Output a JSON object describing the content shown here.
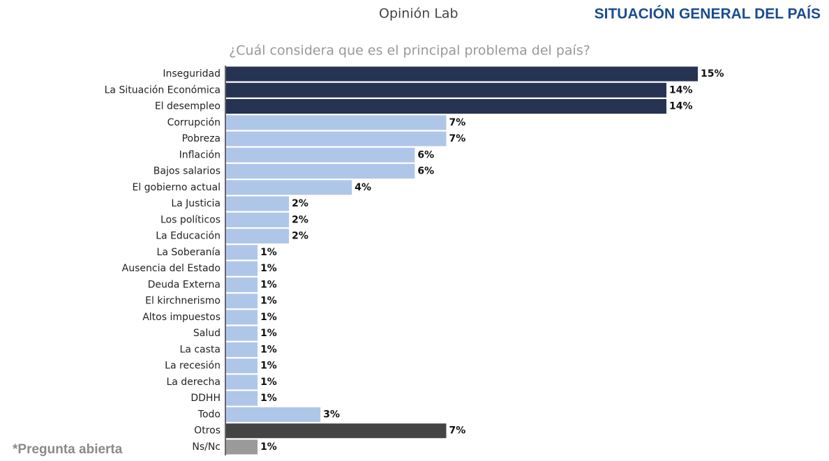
{
  "header": {
    "brand": "Opinión Lab",
    "section": "SITUACIÓN GENERAL DEL PAÍS"
  },
  "footnote": "*Pregunta abierta",
  "chart_data": {
    "type": "hbar",
    "title": "¿Cuál considera que es el principal problema del país?",
    "categories": [
      "Inseguridad",
      "La Situación Económica",
      "El desempleo",
      "Corrupción",
      "Pobreza",
      "Inflación",
      "Bajos salarios",
      "El gobierno actual",
      "La Justicia",
      "Los políticos",
      "La Educación",
      "La Soberanía",
      "Ausencia del Estado",
      "Deuda Externa",
      "El kirchnerismo",
      "Altos impuestos",
      "Salud",
      "La casta",
      "La recesión",
      "La derecha",
      "DDHH",
      "Todo",
      "Otros",
      "Ns/Nc"
    ],
    "values": [
      15,
      14,
      14,
      7,
      7,
      6,
      6,
      4,
      2,
      2,
      2,
      1,
      1,
      1,
      1,
      1,
      1,
      1,
      1,
      1,
      1,
      3,
      7,
      1
    ],
    "value_labels": [
      "15%",
      "14%",
      "14%",
      "7%",
      "7%",
      "6%",
      "6%",
      "4%",
      "2%",
      "2%",
      "2%",
      "1%",
      "1%",
      "1%",
      "1%",
      "1%",
      "1%",
      "1%",
      "1%",
      "1%",
      "1%",
      "3%",
      "7%",
      "1%"
    ],
    "colors": [
      "#263352",
      "#263352",
      "#263352",
      "#aec6e8",
      "#aec6e8",
      "#aec6e8",
      "#aec6e8",
      "#aec6e8",
      "#aec6e8",
      "#aec6e8",
      "#aec6e8",
      "#aec6e8",
      "#aec6e8",
      "#aec6e8",
      "#aec6e8",
      "#aec6e8",
      "#aec6e8",
      "#aec6e8",
      "#aec6e8",
      "#aec6e8",
      "#aec6e8",
      "#aec6e8",
      "#444444",
      "#9a9a9a"
    ]
  }
}
